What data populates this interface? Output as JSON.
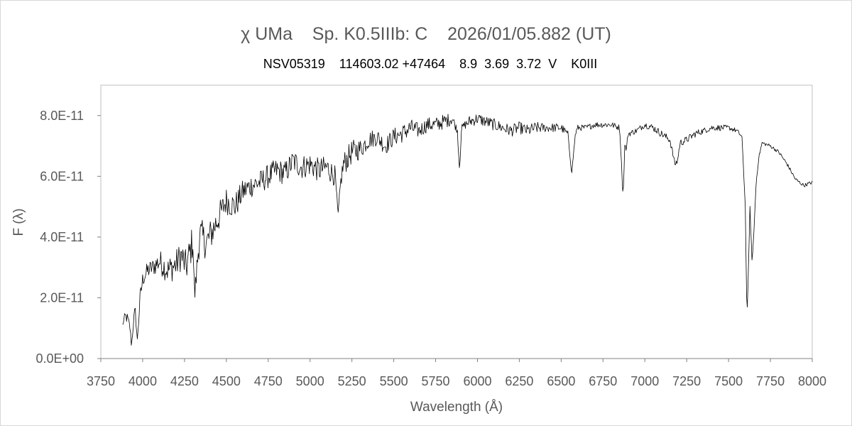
{
  "chart_data": {
    "type": "line",
    "title": "χ UMa    Sp. K0.5IIIb: C    2026/01/05.882 (UT)",
    "subtitle": "NSV05319    114603.02 +47464    8.9  3.69  3.72  V    K0III",
    "xlabel": "Wavelength (Å)",
    "ylabel": "F (λ)",
    "xlim": [
      3750,
      8000
    ],
    "ylim": [
      0,
      9e-11
    ],
    "x_ticks": [
      3750,
      4000,
      4250,
      4500,
      4750,
      5000,
      5250,
      5500,
      5750,
      6000,
      6250,
      6500,
      6750,
      7000,
      7250,
      7500,
      7750,
      8000
    ],
    "x_tick_labels": [
      "3750",
      "4000",
      "4250",
      "4500",
      "4750",
      "5000",
      "5250",
      "5500",
      "5750",
      "6000",
      "6250",
      "6500",
      "6750",
      "7000",
      "7250",
      "7500",
      "7750",
      "8000"
    ],
    "y_ticks": [
      0,
      2e-11,
      4e-11,
      6e-11,
      8e-11
    ],
    "y_tick_labels": [
      "0.0E+00",
      "2.0E-11",
      "4.0E-11",
      "6.0E-11",
      "8.0E-11"
    ],
    "grid": false,
    "legend": "none",
    "line_color": "#000000",
    "series": [
      {
        "x": [
          3880,
          3895,
          3910,
          3925,
          3933,
          3945,
          3955,
          3968,
          3985,
          4000,
          4030,
          4060,
          4100,
          4150,
          4200,
          4230,
          4260,
          4300,
          4310,
          4340,
          4380,
          4400,
          4450,
          4500,
          4550,
          4600,
          4650,
          4700,
          4750,
          4800,
          4850,
          4900,
          4950,
          5000,
          5050,
          5100,
          5150,
          5167,
          5185,
          5200,
          5250,
          5300,
          5350,
          5400,
          5450,
          5500,
          5550,
          5600,
          5650,
          5700,
          5750,
          5800,
          5850,
          5880,
          5893,
          5905,
          5950,
          6000,
          6050,
          6100,
          6150,
          6200,
          6250,
          6300,
          6350,
          6400,
          6450,
          6500,
          6540,
          6563,
          6585,
          6600,
          6650,
          6700,
          6750,
          6800,
          6850,
          6870,
          6880,
          6890,
          6900,
          6950,
          7000,
          7050,
          7100,
          7150,
          7180,
          7195,
          7210,
          7250,
          7300,
          7350,
          7400,
          7450,
          7500,
          7550,
          7580,
          7600,
          7610,
          7620,
          7628,
          7640,
          7650,
          7665,
          7680,
          7700,
          7750,
          7800,
          7850,
          7900,
          7950,
          8000
        ],
        "y": [
          1.1e-11,
          1.4e-11,
          1.3e-11,
          1e-11,
          4e-12,
          1.2e-11,
          1.6e-11,
          6e-12,
          2e-11,
          2.6e-11,
          2.9e-11,
          3e-11,
          3.2e-11,
          2.9e-11,
          3.1e-11,
          3.4e-11,
          3e-11,
          3.9e-11,
          2e-11,
          4.1e-11,
          3.8e-11,
          4e-11,
          4.6e-11,
          5.2e-11,
          5e-11,
          5.5e-11,
          5.7e-11,
          5.8e-11,
          6e-11,
          6.2e-11,
          6.1e-11,
          6.5e-11,
          6.3e-11,
          6.4e-11,
          6.2e-11,
          6.3e-11,
          6e-11,
          4.7e-11,
          5.9e-11,
          6.4e-11,
          6.8e-11,
          6.9e-11,
          7.2e-11,
          7.3e-11,
          7e-11,
          7.3e-11,
          7.4e-11,
          7.6e-11,
          7.5e-11,
          7.7e-11,
          7.7e-11,
          7.8e-11,
          7.9e-11,
          7.5e-11,
          6.2e-11,
          7.6e-11,
          7.8e-11,
          7.9e-11,
          7.8e-11,
          7.7e-11,
          7.6e-11,
          7.5e-11,
          7.6e-11,
          7.5e-11,
          7.6e-11,
          7.6e-11,
          7.6e-11,
          7.6e-11,
          7.4e-11,
          6.1e-11,
          7.4e-11,
          7.6e-11,
          7.6e-11,
          7.7e-11,
          7.7e-11,
          7.7e-11,
          7.6e-11,
          5.3e-11,
          7e-11,
          6.9e-11,
          7.4e-11,
          7.5e-11,
          7.7e-11,
          7.6e-11,
          7.4e-11,
          7.2e-11,
          6.4e-11,
          6.5e-11,
          7.1e-11,
          7.2e-11,
          7.4e-11,
          7.5e-11,
          7.6e-11,
          7.6e-11,
          7.6e-11,
          7.5e-11,
          7.3e-11,
          5e-11,
          1.3e-11,
          3.2e-11,
          5e-11,
          3.2e-11,
          4e-11,
          5.8e-11,
          6.6e-11,
          7.1e-11,
          7e-11,
          6.8e-11,
          6.4e-11,
          5.9e-11,
          5.7e-11,
          5.8e-11
        ],
        "jitter": [
          1e-12,
          1.5e-12,
          2e-12,
          1.5e-12,
          5e-13,
          2e-12,
          2e-12,
          1e-12,
          3e-12,
          2.5e-12,
          3e-12,
          3e-12,
          4e-12,
          4.5e-12,
          5e-12,
          5e-12,
          5.5e-12,
          6e-12,
          3e-12,
          6e-12,
          5.5e-12,
          5.5e-12,
          5e-12,
          4.5e-12,
          4.5e-12,
          4e-12,
          4e-12,
          4e-12,
          4e-12,
          4e-12,
          4e-12,
          4e-12,
          4e-12,
          4e-12,
          4e-12,
          4e-12,
          3.5e-12,
          1e-12,
          3e-12,
          4e-12,
          4e-12,
          3.5e-12,
          3e-12,
          3e-12,
          3e-12,
          3e-12,
          3e-12,
          3e-12,
          2.5e-12,
          2.5e-12,
          2.5e-12,
          2.5e-12,
          2e-12,
          1e-12,
          5e-13,
          1e-12,
          2e-12,
          2e-12,
          2e-12,
          2e-12,
          2e-12,
          2e-12,
          2e-12,
          2e-12,
          2e-12,
          1.5e-12,
          1.5e-12,
          1.5e-12,
          1e-12,
          5e-13,
          1e-12,
          1e-12,
          1e-12,
          1e-12,
          1e-12,
          1e-12,
          1e-12,
          5e-13,
          1e-12,
          1e-12,
          1e-12,
          1e-12,
          1e-12,
          1.2e-12,
          1.2e-12,
          1.2e-12,
          1e-12,
          1e-12,
          1.2e-12,
          1.2e-12,
          1.2e-12,
          1e-12,
          1e-12,
          1e-12,
          8e-13,
          8e-13,
          5e-13,
          2e-13,
          2e-13,
          5e-13,
          5e-13,
          5e-13,
          5e-13,
          6e-13,
          6e-13,
          6e-13,
          6e-13,
          6e-13,
          6e-13,
          6e-13,
          6e-13,
          6e-13
        ]
      }
    ]
  }
}
